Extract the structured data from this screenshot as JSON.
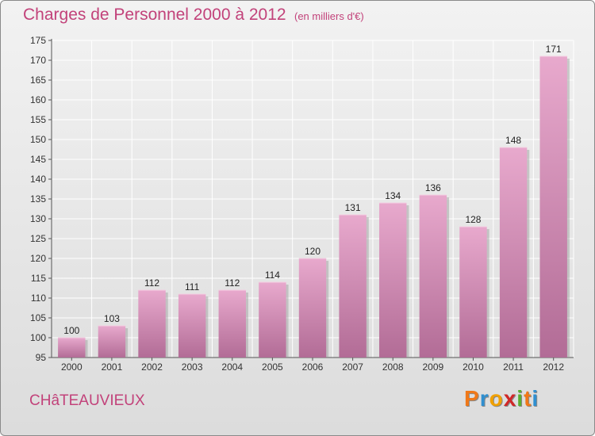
{
  "header": {
    "title": "Charges de Personnel 2000 à 2012",
    "subtitle": "(en milliers d'€)"
  },
  "footer": {
    "city": "CHâTEAUVIEUX",
    "logo_letters": [
      "P",
      "r",
      "o",
      "x",
      "i",
      "t",
      "i"
    ],
    "logo_colors": [
      "#f07818",
      "#2f8fd0",
      "#f0a000",
      "#d02828",
      "#58b030",
      "#f07818",
      "#2f8fd0"
    ]
  },
  "colors": {
    "bar": "#d77fb0",
    "bar_light": "#e6a8cc",
    "bar_dark": "#b06a94",
    "text": "#c2427a"
  },
  "chart_data": {
    "type": "bar",
    "title": "Charges de Personnel 2000 à 2012",
    "subtitle": "(en milliers d'€)",
    "categories": [
      "2000",
      "2001",
      "2002",
      "2003",
      "2004",
      "2005",
      "2006",
      "2007",
      "2008",
      "2009",
      "2010",
      "2011",
      "2012"
    ],
    "values": [
      100,
      103,
      112,
      111,
      112,
      114,
      120,
      131,
      134,
      136,
      128,
      148,
      171
    ],
    "ylim": [
      95,
      175
    ],
    "ytick_step": 5,
    "grid": true
  }
}
